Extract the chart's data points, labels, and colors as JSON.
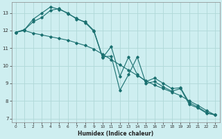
{
  "xlabel": "Humidex (Indice chaleur)",
  "ylabel": "",
  "bg_color": "#ceeef0",
  "grid_color": "#b0d8d8",
  "line_color": "#1a7070",
  "xlim": [
    -0.5,
    23.5
  ],
  "ylim": [
    6.8,
    13.6
  ],
  "yticks": [
    7,
    8,
    9,
    10,
    11,
    12,
    13
  ],
  "xticks": [
    0,
    1,
    2,
    3,
    4,
    5,
    6,
    7,
    8,
    9,
    10,
    11,
    12,
    13,
    14,
    15,
    16,
    17,
    18,
    19,
    20,
    21,
    22,
    23
  ],
  "series": [
    {
      "x": [
        0,
        1,
        2,
        3,
        4,
        5,
        6,
        7,
        8,
        9,
        10,
        11,
        12,
        13,
        14,
        15,
        16,
        17,
        18,
        19,
        20,
        21,
        22,
        23
      ],
      "y": [
        11.9,
        12.05,
        12.65,
        13.0,
        13.35,
        13.2,
        13.0,
        12.65,
        12.5,
        12.0,
        10.5,
        10.55,
        8.6,
        9.5,
        10.5,
        9.0,
        9.1,
        8.8,
        8.55,
        8.7,
        7.8,
        7.6,
        7.3,
        7.2
      ]
    },
    {
      "x": [
        0,
        1,
        2,
        3,
        4,
        5,
        6,
        7,
        8,
        9,
        10,
        11,
        12,
        13,
        14,
        15,
        16,
        17,
        18,
        19,
        20,
        21,
        22,
        23
      ],
      "y": [
        11.9,
        12.05,
        12.5,
        12.75,
        13.15,
        13.25,
        12.95,
        12.7,
        12.45,
        11.95,
        10.45,
        11.1,
        9.4,
        10.5,
        9.5,
        9.1,
        9.3,
        9.0,
        8.7,
        8.75,
        7.9,
        7.65,
        7.35,
        7.2
      ]
    },
    {
      "x": [
        0,
        1,
        2,
        3,
        4,
        5,
        6,
        7,
        8,
        9,
        10,
        11,
        12,
        13,
        14,
        15,
        16,
        17,
        18,
        19,
        20,
        21,
        22,
        23
      ],
      "y": [
        11.9,
        12.0,
        11.85,
        11.75,
        11.65,
        11.55,
        11.45,
        11.3,
        11.15,
        10.95,
        10.65,
        10.35,
        10.05,
        9.75,
        9.45,
        9.15,
        8.9,
        8.7,
        8.5,
        8.3,
        8.0,
        7.75,
        7.45,
        7.2
      ]
    }
  ]
}
